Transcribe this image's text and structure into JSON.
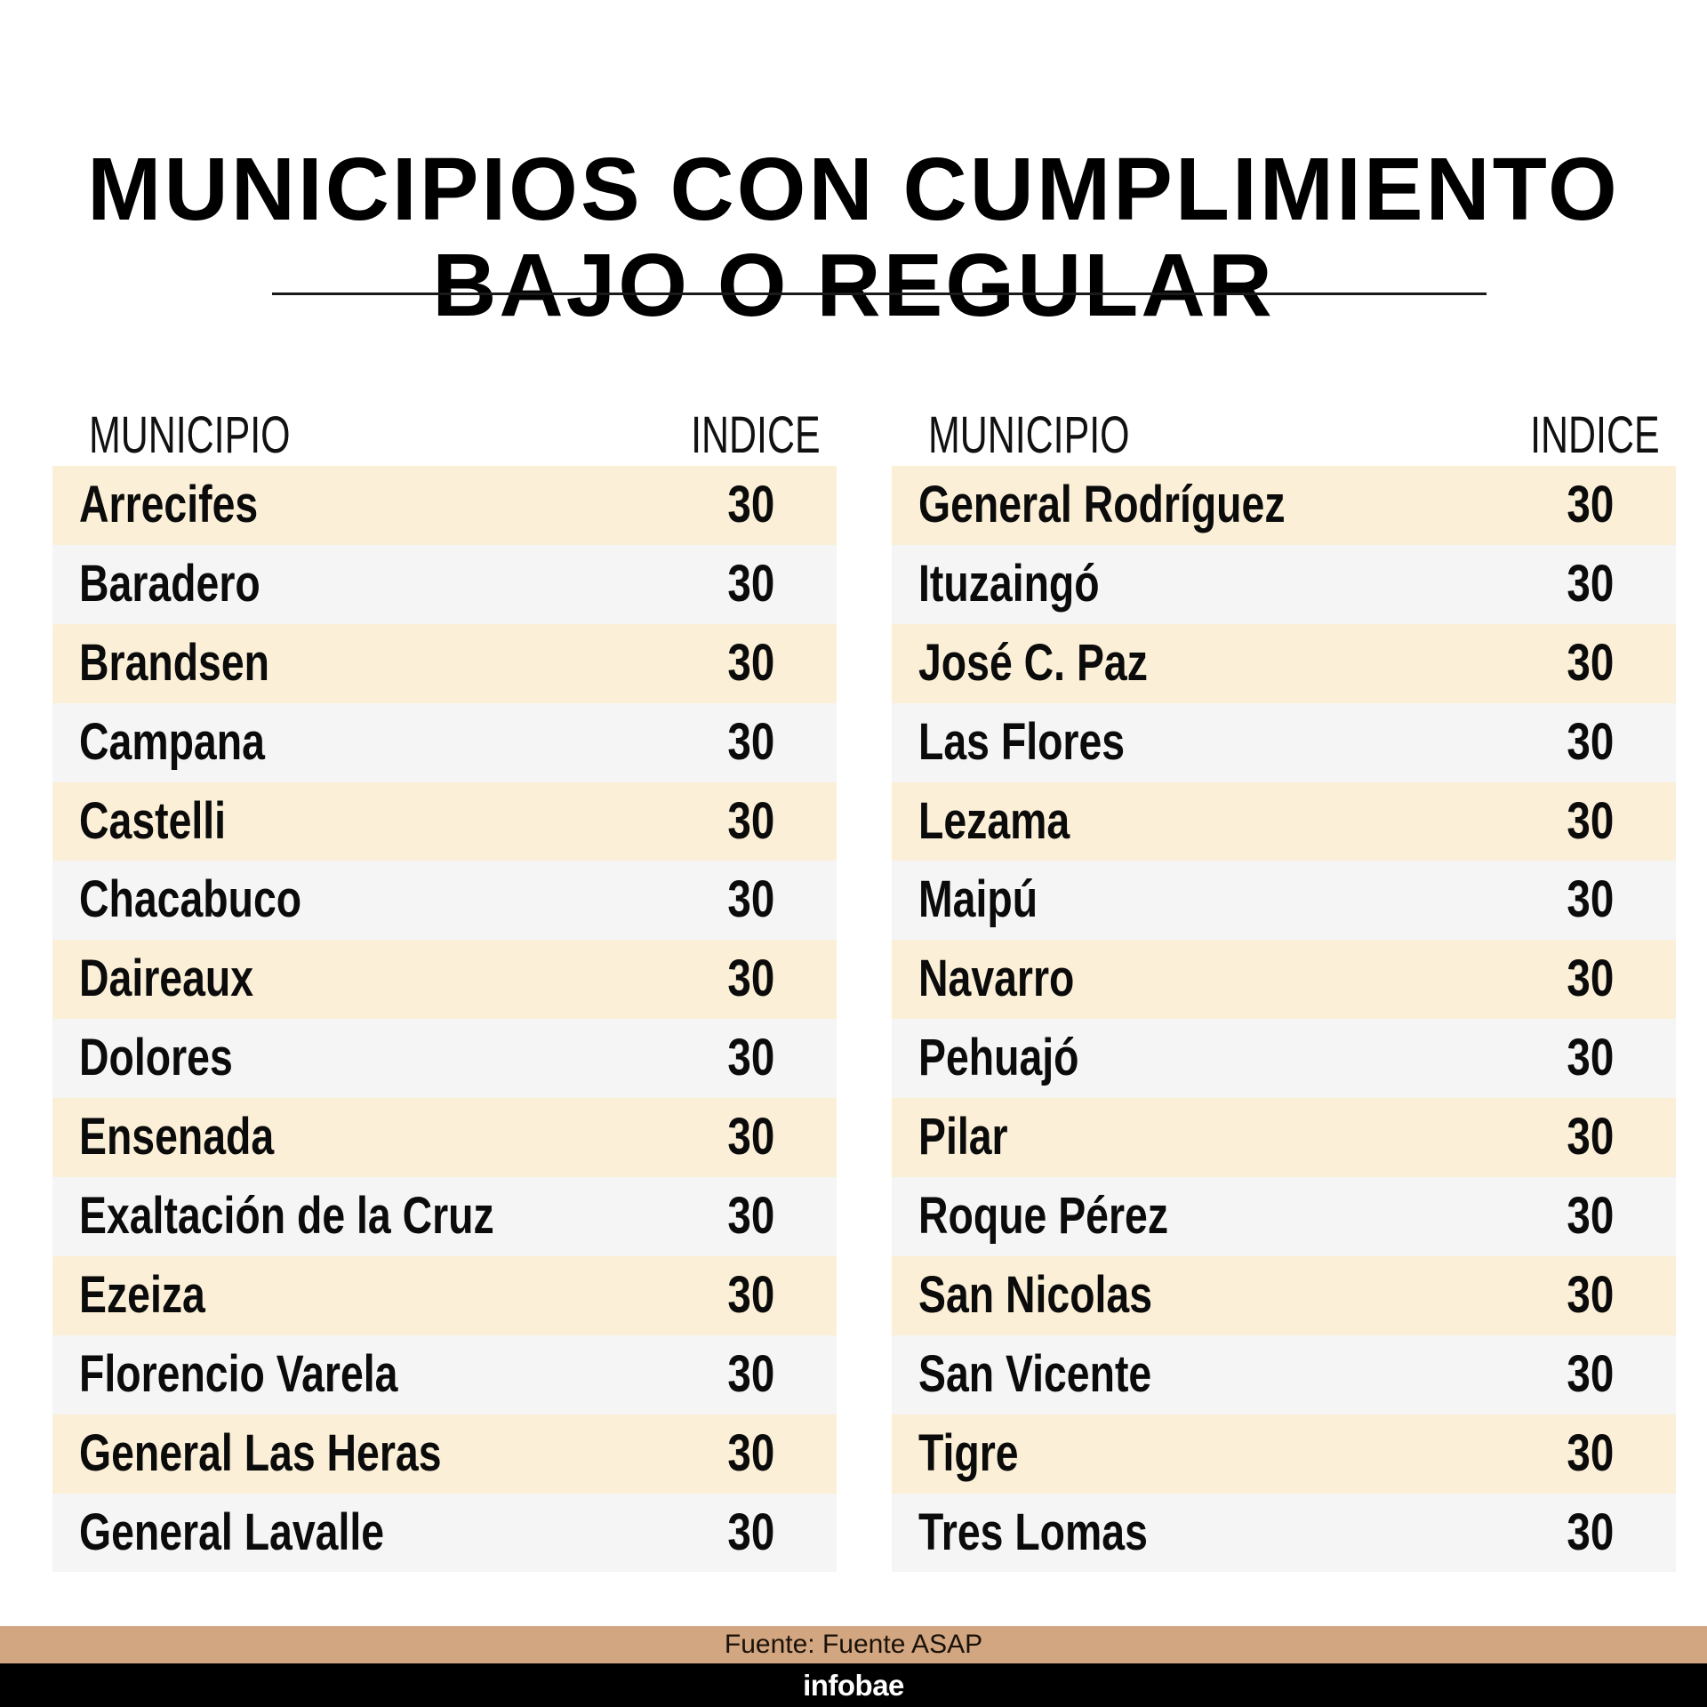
{
  "title": {
    "line1": "MUNICIPIOS CON CUMPLIMIENTO",
    "line2": "BAJO O REGULAR"
  },
  "colors": {
    "row_cream": "#FBF0D7",
    "row_gray": "#F5F5F5",
    "source_bar": "#D3A682",
    "brand_bar": "#000000"
  },
  "table_left": {
    "headers": {
      "municipio": "MUNICIPIO",
      "indice": "INDICE"
    },
    "rows": [
      {
        "municipio": "Arrecifes",
        "indice": "30"
      },
      {
        "municipio": "Baradero",
        "indice": "30"
      },
      {
        "municipio": "Brandsen",
        "indice": "30"
      },
      {
        "municipio": "Campana",
        "indice": "30"
      },
      {
        "municipio": "Castelli",
        "indice": "30"
      },
      {
        "municipio": "Chacabuco",
        "indice": "30"
      },
      {
        "municipio": "Daireaux",
        "indice": "30"
      },
      {
        "municipio": "Dolores",
        "indice": "30"
      },
      {
        "municipio": "Ensenada",
        "indice": "30"
      },
      {
        "municipio": "Exaltación de la Cruz",
        "indice": "30"
      },
      {
        "municipio": "Ezeiza",
        "indice": "30"
      },
      {
        "municipio": "Florencio Varela",
        "indice": "30"
      },
      {
        "municipio": "General Las Heras",
        "indice": "30"
      },
      {
        "municipio": "General Lavalle",
        "indice": "30"
      }
    ]
  },
  "table_right": {
    "headers": {
      "municipio": "MUNICIPIO",
      "indice": "INDICE"
    },
    "rows": [
      {
        "municipio": "General Rodríguez",
        "indice": "30"
      },
      {
        "municipio": "Ituzaingó",
        "indice": "30"
      },
      {
        "municipio": "José C. Paz",
        "indice": "30"
      },
      {
        "municipio": "Las Flores",
        "indice": "30"
      },
      {
        "municipio": "Lezama",
        "indice": "30"
      },
      {
        "municipio": "Maipú",
        "indice": "30"
      },
      {
        "municipio": "Navarro",
        "indice": "30"
      },
      {
        "municipio": "Pehuajó",
        "indice": "30"
      },
      {
        "municipio": "Pilar",
        "indice": "30"
      },
      {
        "municipio": "Roque Pérez",
        "indice": "30"
      },
      {
        "municipio": "San Nicolas",
        "indice": "30"
      },
      {
        "municipio": "San Vicente",
        "indice": "30"
      },
      {
        "municipio": "Tigre",
        "indice": "30"
      },
      {
        "municipio": "Tres Lomas",
        "indice": "30"
      }
    ]
  },
  "footer": {
    "source": "Fuente: Fuente ASAP",
    "brand": "infobae"
  }
}
